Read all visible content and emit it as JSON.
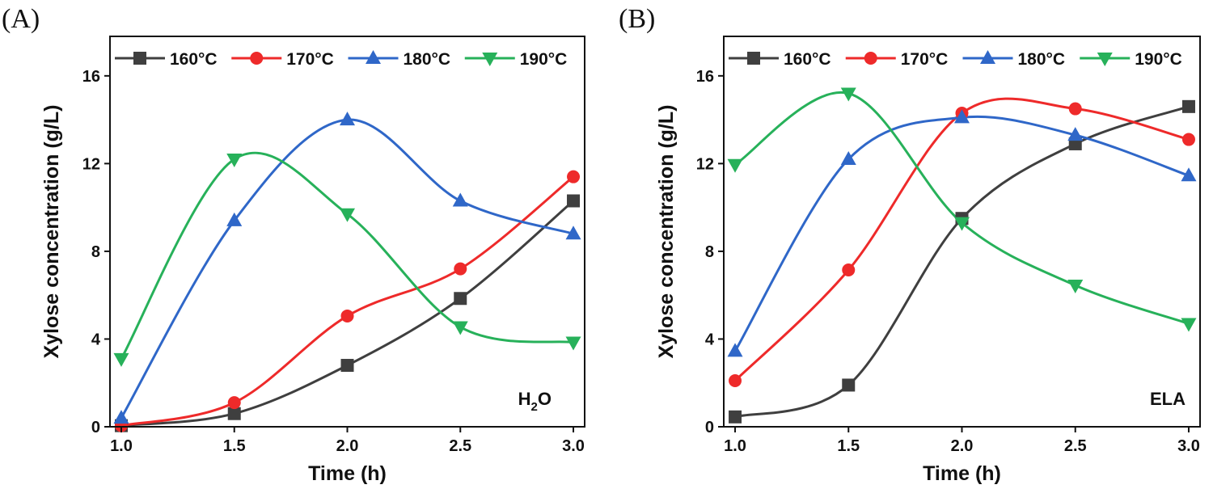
{
  "chart_data": [
    {
      "type": "line",
      "panel_label": "(A)",
      "annotation": {
        "main": "H",
        "sub": "2",
        "tail": "O"
      },
      "xlabel": "Time (h)",
      "ylabel": "Xylose concentration (g/L)",
      "xlim": [
        0.95,
        3.05
      ],
      "ylim": [
        0,
        17.8
      ],
      "xticks": [
        1.0,
        1.5,
        2.0,
        2.5,
        3.0
      ],
      "xtick_labels": [
        "1.0",
        "1.5",
        "2.0",
        "2.5",
        "3.0"
      ],
      "yticks": [
        0,
        4,
        8,
        12,
        16
      ],
      "ytick_labels": [
        "0",
        "4",
        "8",
        "12",
        "16"
      ],
      "legend_position": "top",
      "x": [
        1.0,
        1.5,
        2.0,
        2.5,
        3.0
      ],
      "series": [
        {
          "name": "160°C",
          "color": "#3f3f3f",
          "marker": "square",
          "values": [
            0.05,
            0.6,
            2.8,
            5.85,
            10.3
          ]
        },
        {
          "name": "170°C",
          "color": "#ee2a2a",
          "marker": "circle",
          "values": [
            0.05,
            1.1,
            5.05,
            7.2,
            11.4
          ]
        },
        {
          "name": "180°C",
          "color": "#2f67c8",
          "marker": "triangle-up",
          "values": [
            0.4,
            9.4,
            14.0,
            10.3,
            8.8
          ]
        },
        {
          "name": "190°C",
          "color": "#27b15a",
          "marker": "triangle-down",
          "values": [
            3.1,
            12.2,
            9.7,
            4.55,
            3.85
          ]
        }
      ]
    },
    {
      "type": "line",
      "panel_label": "(B)",
      "annotation": {
        "main": "ELA"
      },
      "xlabel": "Time (h)",
      "ylabel": "Xylose concentration (g/L)",
      "xlim": [
        0.95,
        3.05
      ],
      "ylim": [
        0,
        17.8
      ],
      "xticks": [
        1.0,
        1.5,
        2.0,
        2.5,
        3.0
      ],
      "xtick_labels": [
        "1.0",
        "1.5",
        "2.0",
        "2.5",
        "3.0"
      ],
      "yticks": [
        0,
        4,
        8,
        12,
        16
      ],
      "ytick_labels": [
        "0",
        "4",
        "8",
        "12",
        "16"
      ],
      "legend_position": "top",
      "x": [
        1.0,
        1.5,
        2.0,
        2.5,
        3.0
      ],
      "series": [
        {
          "name": "160°C",
          "color": "#3f3f3f",
          "marker": "square",
          "values": [
            0.45,
            1.9,
            9.5,
            12.9,
            14.6
          ]
        },
        {
          "name": "170°C",
          "color": "#ee2a2a",
          "marker": "circle",
          "values": [
            2.1,
            7.15,
            14.3,
            14.5,
            13.1
          ]
        },
        {
          "name": "180°C",
          "color": "#2f67c8",
          "marker": "triangle-up",
          "values": [
            3.45,
            12.2,
            14.1,
            13.3,
            11.45
          ]
        },
        {
          "name": "190°C",
          "color": "#27b15a",
          "marker": "triangle-down",
          "values": [
            11.95,
            15.2,
            9.3,
            6.45,
            4.7
          ]
        }
      ]
    }
  ]
}
